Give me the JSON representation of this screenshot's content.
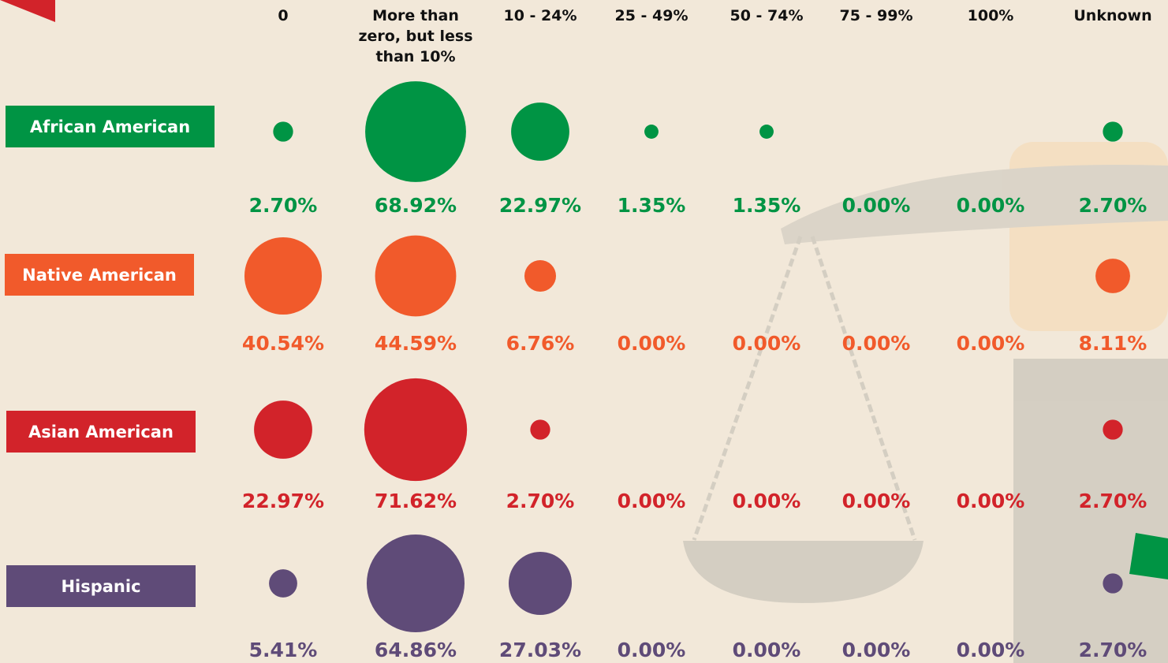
{
  "chart_data": {
    "type": "bubble",
    "categories": [
      "0",
      "More than zero, but less than 10%",
      "10 - 24%",
      "25 - 49%",
      "50 - 74%",
      "75 - 99%",
      "100%",
      "Unknown"
    ],
    "series": [
      {
        "name": "African American",
        "color": "#009444",
        "values": [
          2.7,
          68.92,
          22.97,
          1.35,
          1.35,
          0.0,
          0.0,
          2.7
        ],
        "value_labels": [
          "2.70%",
          "68.92%",
          "22.97%",
          "1.35%",
          "1.35%",
          "0.00%",
          "0.00%",
          "2.70%"
        ]
      },
      {
        "name": "Native American",
        "color": "#f15a2b",
        "values": [
          40.54,
          44.59,
          6.76,
          0.0,
          0.0,
          0.0,
          0.0,
          8.11
        ],
        "value_labels": [
          "40.54%",
          "44.59%",
          "6.76%",
          "0.00%",
          "0.00%",
          "0.00%",
          "0.00%",
          "8.11%"
        ]
      },
      {
        "name": "Asian American",
        "color": "#d2232a",
        "values": [
          22.97,
          71.62,
          2.7,
          0.0,
          0.0,
          0.0,
          0.0,
          2.7
        ],
        "value_labels": [
          "22.97%",
          "71.62%",
          "2.70%",
          "0.00%",
          "0.00%",
          "0.00%",
          "0.00%",
          "2.70%"
        ]
      },
      {
        "name": "Hispanic",
        "color": "#5f4b78",
        "values": [
          5.41,
          64.86,
          27.03,
          0.0,
          0.0,
          0.0,
          0.0,
          2.7
        ],
        "value_labels": [
          "5.41%",
          "64.86%",
          "27.03%",
          "0.00%",
          "0.00%",
          "0.00%",
          "0.00%",
          "2.70%"
        ]
      }
    ]
  }
}
